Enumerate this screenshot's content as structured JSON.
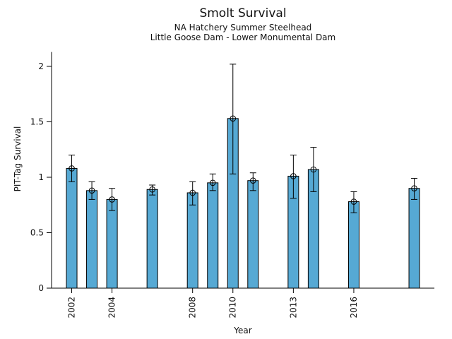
{
  "chart_data": {
    "type": "bar",
    "title": "Smolt Survival",
    "subtitles": [
      "NA Hatchery Summer Steelhead",
      "Little Goose Dam - Lower Monumental Dam"
    ],
    "xlabel": "Year",
    "ylabel": "PIT-Tag Survival",
    "categories": [
      "2002",
      "2003",
      "2004",
      "2006",
      "2008",
      "2009",
      "2010",
      "2011",
      "2013",
      "2014",
      "2016",
      "2019"
    ],
    "values": [
      1.08,
      0.88,
      0.8,
      0.89,
      0.86,
      0.95,
      1.53,
      0.97,
      1.01,
      1.07,
      0.78,
      0.9
    ],
    "err_low": [
      0.96,
      0.8,
      0.7,
      0.84,
      0.75,
      0.88,
      1.03,
      0.88,
      0.81,
      0.87,
      0.68,
      0.8
    ],
    "err_high": [
      1.2,
      0.96,
      0.9,
      0.93,
      0.96,
      1.03,
      2.02,
      1.04,
      1.2,
      1.27,
      0.87,
      0.99
    ],
    "x_tick_labels": [
      "2002",
      "2004",
      "2008",
      "2010",
      "2013",
      "2016"
    ],
    "y_tick_labels": [
      "0",
      "0.5",
      "1",
      "1.5",
      "2"
    ],
    "xlim": [
      2001,
      2020
    ],
    "ylim": [
      0,
      2.13
    ],
    "bar_color": "#56A9D4",
    "edge_color": "#000000",
    "error_marker": "open-circle",
    "x_tick_rotation_deg": 90,
    "grid": false,
    "legend": false
  }
}
